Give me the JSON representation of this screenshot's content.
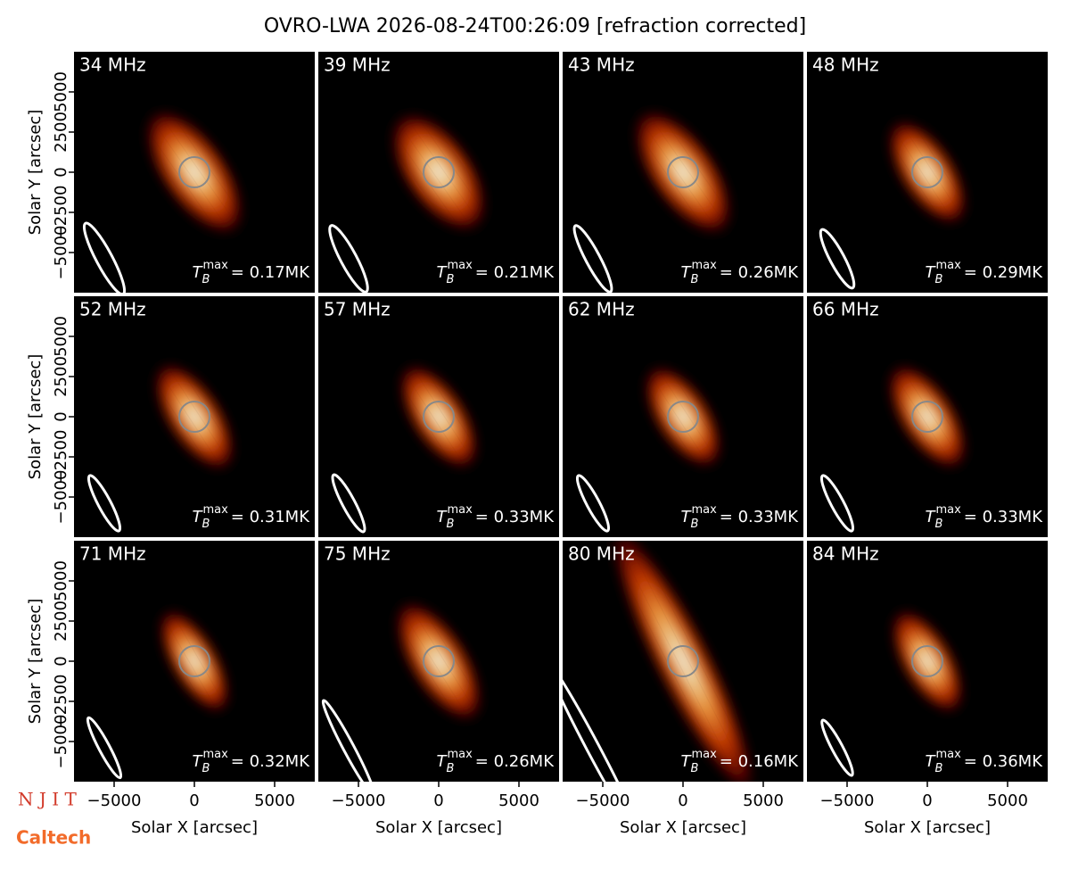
{
  "suptitle": "OVRO-LWA 2026-08-24T00:26:09 [refraction corrected]",
  "logos": [
    "N J I T",
    "Caltech"
  ],
  "annotation_symbol": {
    "base": "T",
    "sub": "B",
    "sup": "max"
  },
  "chart_data": [
    {
      "type": "image",
      "label": "34 MHz",
      "annotation": {
        "value": 0.17,
        "label": "= 0.17MK"
      },
      "xlim": [
        -7500,
        7500
      ],
      "ylim": [
        -7500,
        7500
      ],
      "ylabel": "Solar Y [arcsec]",
      "yticks": [
        {
          "value": -5000,
          "label": "−5000"
        },
        {
          "value": -2500,
          "label": "−2500"
        },
        0,
        2500,
        5000
      ]
    },
    {
      "type": "image",
      "label": "39 MHz",
      "annotation": {
        "value": 0.21,
        "label": "= 0.21MK"
      },
      "xlim": [
        -7500,
        7500
      ],
      "ylim": [
        -7500,
        7500
      ]
    },
    {
      "type": "image",
      "label": "43 MHz",
      "annotation": {
        "value": 0.26,
        "label": "= 0.26MK"
      },
      "xlim": [
        -7500,
        7500
      ],
      "ylim": [
        -7500,
        7500
      ]
    },
    {
      "type": "image",
      "label": "48 MHz",
      "annotation": {
        "value": 0.29,
        "label": "= 0.29MK"
      },
      "xlim": [
        -7500,
        7500
      ],
      "ylim": [
        -7500,
        7500
      ]
    },
    {
      "type": "image",
      "label": "52 MHz",
      "annotation": {
        "value": 0.31,
        "label": "= 0.31MK"
      },
      "xlim": [
        -7500,
        7500
      ],
      "ylim": [
        -7500,
        7500
      ],
      "ylabel": "Solar Y [arcsec]",
      "yticks": [
        {
          "value": -5000,
          "label": "−5000"
        },
        {
          "value": -2500,
          "label": "−2500"
        },
        0,
        2500,
        5000
      ]
    },
    {
      "type": "image",
      "label": "57 MHz",
      "annotation": {
        "value": 0.33,
        "label": "= 0.33MK"
      },
      "xlim": [
        -7500,
        7500
      ],
      "ylim": [
        -7500,
        7500
      ]
    },
    {
      "type": "image",
      "label": "62 MHz",
      "annotation": {
        "value": 0.33,
        "label": "= 0.33MK"
      },
      "xlim": [
        -7500,
        7500
      ],
      "ylim": [
        -7500,
        7500
      ]
    },
    {
      "type": "image",
      "label": "66 MHz",
      "annotation": {
        "value": 0.33,
        "label": "= 0.33MK"
      },
      "xlim": [
        -7500,
        7500
      ],
      "ylim": [
        -7500,
        7500
      ]
    },
    {
      "type": "image",
      "label": "71 MHz",
      "annotation": {
        "value": 0.32,
        "label": "= 0.32MK"
      },
      "xlim": [
        -7500,
        7500
      ],
      "ylim": [
        -7500,
        7500
      ],
      "ylabel": "Solar Y [arcsec]",
      "yticks": [
        {
          "value": -5000,
          "label": "−5000"
        },
        {
          "value": -2500,
          "label": "−2500"
        },
        0,
        2500,
        5000
      ],
      "xlabel": "Solar X [arcsec]",
      "xticks": [
        {
          "value": -5000,
          "label": "−5000"
        },
        0,
        5000
      ]
    },
    {
      "type": "image",
      "label": "75 MHz",
      "annotation": {
        "value": 0.26,
        "label": "= 0.26MK"
      },
      "xlim": [
        -7500,
        7500
      ],
      "ylim": [
        -7500,
        7500
      ],
      "xlabel": "Solar X [arcsec]",
      "xticks": [
        {
          "value": -5000,
          "label": "−5000"
        },
        0,
        5000
      ]
    },
    {
      "type": "image",
      "label": "80 MHz",
      "annotation": {
        "value": 0.16,
        "label": "= 0.16MK"
      },
      "xlim": [
        -7500,
        7500
      ],
      "ylim": [
        -7500,
        7500
      ],
      "xlabel": "Solar X [arcsec]",
      "xticks": [
        {
          "value": -5000,
          "label": "−5000"
        },
        0,
        5000
      ]
    },
    {
      "type": "image",
      "label": "84 MHz",
      "annotation": {
        "value": 0.36,
        "label": "= 0.36MK"
      },
      "xlim": [
        -7500,
        7500
      ],
      "ylim": [
        -7500,
        7500
      ],
      "xlabel": "Solar X [arcsec]",
      "xticks": [
        {
          "value": -5000,
          "label": "−5000"
        },
        0,
        5000
      ]
    }
  ]
}
